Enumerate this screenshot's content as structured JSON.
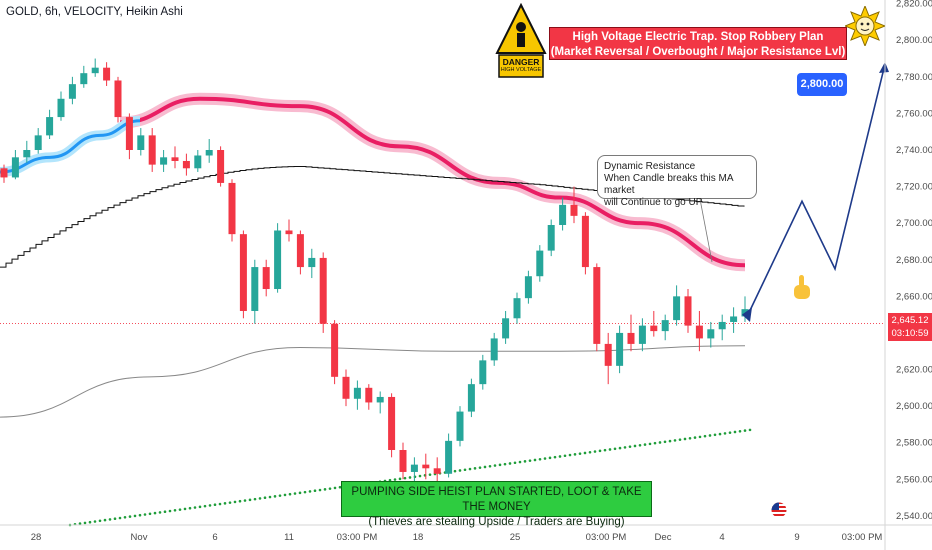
{
  "header": {
    "title": "GOLD, 6h, VELOCITY, Heikin Ashi"
  },
  "annotations": {
    "top_red_line1": "High Voltage Electric Trap. Stop Robbery Plan",
    "top_red_line2": "(Market Reversal / Overbought / Major Resistance Lvl)",
    "bottom_green_line1": "PUMPING SIDE HEIST PLAN STARTED, LOOT & TAKE THE MONEY",
    "bottom_green_line2": "(Thieves are stealing Upside / Traders are Buying)",
    "callout_line1": "Dynamic Resistance",
    "callout_line2": "When Candle breaks this MA market",
    "callout_line3": "will Continue to go UP",
    "target_label": "2,800.00",
    "danger_text": "DANGER",
    "danger_sub": "HIGH VOLTAGE"
  },
  "price_tag": {
    "price": "2,645.12",
    "countdown": "03:10:59"
  },
  "colors": {
    "up": "#26a69a",
    "down": "#f23645",
    "pink_ma": "#e91e63",
    "blue_ma": "#2196f3",
    "arrow": "#1e3a8a",
    "green_dots": "#1f9d3a"
  },
  "chart_data": {
    "type": "candlestick",
    "y_ticks": [
      "2,820.00",
      "2,800.00",
      "2,780.00",
      "2,760.00",
      "2,740.00",
      "2,720.00",
      "2,700.00",
      "2,680.00",
      "2,660.00",
      "2,640.00",
      "2,620.00",
      "2,600.00",
      "2,580.00",
      "2,560.00",
      "2,540.00"
    ],
    "x_ticks": [
      "28",
      "Nov",
      "6",
      "11",
      "03:00 PM",
      "18",
      "25",
      "03:00 PM",
      "Dec",
      "4",
      "9",
      "03:00 PM"
    ],
    "ylim": [
      2535,
      2822
    ],
    "last_price": 2645.12,
    "target": 2800,
    "projection_path": [
      [
        2650,
        0
      ],
      [
        2712,
        1
      ],
      [
        2675,
        2
      ],
      [
        2787,
        3
      ]
    ],
    "candles": [
      [
        2730,
        2732,
        2722,
        2725
      ],
      [
        2725,
        2740,
        2724,
        2736
      ],
      [
        2736,
        2745,
        2733,
        2740
      ],
      [
        2740,
        2752,
        2738,
        2748
      ],
      [
        2748,
        2762,
        2746,
        2758
      ],
      [
        2758,
        2772,
        2756,
        2768
      ],
      [
        2768,
        2780,
        2765,
        2776
      ],
      [
        2776,
        2786,
        2774,
        2782
      ],
      [
        2782,
        2790,
        2780,
        2785
      ],
      [
        2785,
        2788,
        2775,
        2778
      ],
      [
        2778,
        2780,
        2755,
        2758
      ],
      [
        2758,
        2760,
        2735,
        2740
      ],
      [
        2740,
        2752,
        2737,
        2748
      ],
      [
        2748,
        2752,
        2728,
        2732
      ],
      [
        2732,
        2740,
        2728,
        2736
      ],
      [
        2736,
        2742,
        2730,
        2734
      ],
      [
        2734,
        2738,
        2726,
        2730
      ],
      [
        2730,
        2740,
        2728,
        2737
      ],
      [
        2737,
        2746,
        2733,
        2740
      ],
      [
        2740,
        2742,
        2720,
        2722
      ],
      [
        2722,
        2724,
        2690,
        2694
      ],
      [
        2694,
        2696,
        2648,
        2652
      ],
      [
        2652,
        2680,
        2645,
        2676
      ],
      [
        2676,
        2680,
        2660,
        2664
      ],
      [
        2664,
        2700,
        2662,
        2696
      ],
      [
        2696,
        2702,
        2690,
        2694
      ],
      [
        2694,
        2696,
        2672,
        2676
      ],
      [
        2676,
        2686,
        2670,
        2681
      ],
      [
        2681,
        2684,
        2640,
        2645
      ],
      [
        2645,
        2647,
        2612,
        2616
      ],
      [
        2616,
        2620,
        2600,
        2604
      ],
      [
        2604,
        2614,
        2598,
        2610
      ],
      [
        2610,
        2612,
        2598,
        2602
      ],
      [
        2602,
        2608,
        2596,
        2605
      ],
      [
        2605,
        2607,
        2572,
        2576
      ],
      [
        2576,
        2580,
        2560,
        2564
      ],
      [
        2564,
        2572,
        2558,
        2568
      ],
      [
        2568,
        2574,
        2560,
        2566
      ],
      [
        2566,
        2572,
        2558,
        2563
      ],
      [
        2563,
        2585,
        2561,
        2581
      ],
      [
        2581,
        2600,
        2578,
        2597
      ],
      [
        2597,
        2615,
        2594,
        2612
      ],
      [
        2612,
        2628,
        2609,
        2625
      ],
      [
        2625,
        2640,
        2622,
        2637
      ],
      [
        2637,
        2652,
        2634,
        2648
      ],
      [
        2648,
        2662,
        2645,
        2659
      ],
      [
        2659,
        2674,
        2656,
        2671
      ],
      [
        2671,
        2688,
        2668,
        2685
      ],
      [
        2685,
        2702,
        2682,
        2699
      ],
      [
        2699,
        2714,
        2696,
        2710
      ],
      [
        2710,
        2720,
        2700,
        2704
      ],
      [
        2704,
        2706,
        2672,
        2676
      ],
      [
        2676,
        2678,
        2630,
        2634
      ],
      [
        2634,
        2640,
        2612,
        2622
      ],
      [
        2622,
        2644,
        2618,
        2640
      ],
      [
        2640,
        2650,
        2630,
        2634
      ],
      [
        2634,
        2648,
        2630,
        2644
      ],
      [
        2644,
        2652,
        2638,
        2641
      ],
      [
        2641,
        2650,
        2636,
        2647
      ],
      [
        2647,
        2666,
        2644,
        2660
      ],
      [
        2660,
        2664,
        2640,
        2644
      ],
      [
        2644,
        2652,
        2630,
        2637
      ],
      [
        2637,
        2646,
        2632,
        2642
      ],
      [
        2642,
        2650,
        2636,
        2646
      ],
      [
        2646,
        2654,
        2640,
        2649
      ],
      [
        2649,
        2660,
        2646,
        2653
      ]
    ],
    "lines": [
      {
        "name": "",
        "color": "#e91e63",
        "points": [
          [
            0,
            2766
          ],
          [
            10,
            2764
          ],
          [
            20,
            2760
          ],
          [
            30,
            2752
          ],
          [
            40,
            2742
          ],
          [
            50,
            2730
          ],
          [
            60,
            2718
          ],
          [
            66,
            2710
          ]
        ]
      }
    ]
  }
}
